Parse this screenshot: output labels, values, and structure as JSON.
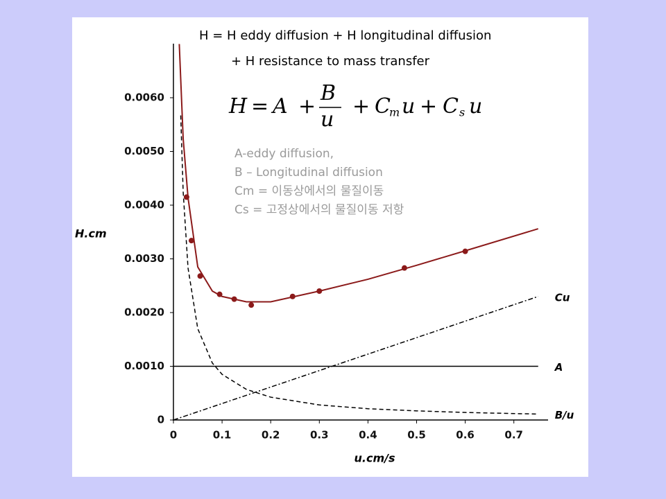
{
  "chart_data": {
    "type": "line",
    "header": [
      "H = H eddy diffusion + H longitudinal diffusion",
      "+ H resistance to mass transfer"
    ],
    "equation": [
      "H",
      "=",
      "A",
      "+",
      "B",
      "u",
      "+",
      "C",
      "m",
      "u",
      "+",
      "C",
      "s",
      "u"
    ],
    "notes": [
      "A-eddy diffusion,",
      "B – Longitudinal diffusion",
      "Cm = 이동상에서의 물질이동",
      "Cs = 고정상에서의 물질이동 저항"
    ],
    "xlabel": "u.cm/s",
    "ylabel": "H.cm",
    "xlim": [
      0,
      0.76
    ],
    "ylim": [
      0,
      0.007
    ],
    "xticks": [
      0,
      0.1,
      0.2,
      0.3,
      0.4,
      0.5,
      0.6,
      0.7
    ],
    "yticks": [
      0,
      {
        "value": 0.001,
        "label": "0.0010"
      },
      {
        "value": 0.002,
        "label": "0.0020"
      },
      {
        "value": 0.003,
        "label": "0.0030"
      },
      {
        "value": 0.004,
        "label": "0.0040"
      },
      {
        "value": 0.005,
        "label": "0.0050"
      },
      {
        "value": 0.006,
        "label": "0.0060"
      }
    ],
    "series": [
      {
        "color": "#8b1a1a",
        "style": "solid",
        "x": [
          0.012,
          0.02,
          0.03,
          0.05,
          0.08,
          0.1,
          0.15,
          0.2,
          0.3,
          0.4,
          0.5,
          0.6,
          0.75
        ],
        "values": [
          0.007,
          0.00524,
          0.00414,
          0.00285,
          0.0024,
          0.0023,
          0.0022,
          0.0022,
          0.0024,
          0.00262,
          0.00288,
          0.00315,
          0.00356
        ]
      },
      {
        "color": "#8b1a1a",
        "style": "points",
        "x": [
          0.027,
          0.037,
          0.055,
          0.095,
          0.125,
          0.16,
          0.245,
          0.3,
          0.475,
          0.6
        ],
        "values": [
          0.00415,
          0.00334,
          0.00268,
          0.00234,
          0.00225,
          0.00214,
          0.0023,
          0.0024,
          0.00283,
          0.00314
        ]
      },
      {
        "name": "Cu",
        "color": "#000000",
        "style": "dashdot",
        "x": [
          0,
          0.75
        ],
        "values": [
          0,
          0.0023
        ]
      },
      {
        "name": "A",
        "color": "#000000",
        "style": "solid",
        "x": [
          0,
          0.75
        ],
        "values": [
          0.001,
          0.001
        ]
      },
      {
        "name": "B/u",
        "color": "#000000",
        "style": "dashed",
        "x": [
          0.015,
          0.02,
          0.03,
          0.05,
          0.08,
          0.1,
          0.15,
          0.2,
          0.3,
          0.4,
          0.5,
          0.6,
          0.75
        ],
        "values": [
          0.00567,
          0.00425,
          0.00283,
          0.0017,
          0.00106,
          0.00085,
          0.00057,
          0.000425,
          0.00028,
          0.00021,
          0.00017,
          0.00014,
          0.00011
        ]
      }
    ]
  }
}
